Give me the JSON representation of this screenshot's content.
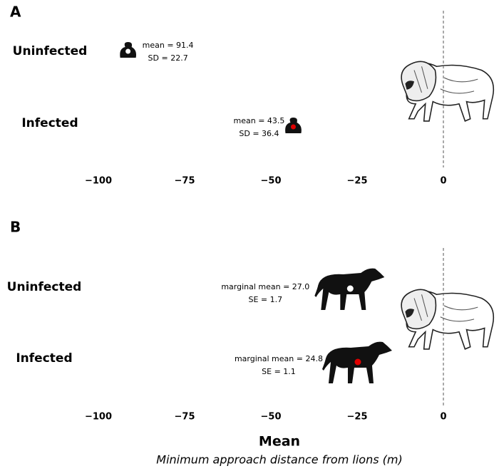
{
  "chart_data": [
    {
      "type": "scatter",
      "panel": "A",
      "categories": [
        "Uninfected",
        "Infected"
      ],
      "x": [
        -91.4,
        -43.5
      ],
      "colors": [
        "#ffffff",
        "#e00000"
      ],
      "annotations": [
        [
          "mean = 91.4",
          "SD = 22.7"
        ],
        [
          "mean = 43.5",
          "SD = 36.4"
        ]
      ],
      "xlim": [
        -110,
        15
      ],
      "xticks": [
        {
          "value": -100,
          "label": "−100"
        },
        {
          "value": -75,
          "label": "−75"
        },
        {
          "value": -50,
          "label": "−50"
        },
        {
          "value": -25,
          "label": "−25"
        },
        0
      ]
    },
    {
      "type": "scatter",
      "panel": "B",
      "categories": [
        "Uninfected",
        "Infected"
      ],
      "x": [
        -27.0,
        -24.8
      ],
      "colors": [
        "#ffffff",
        "#e00000"
      ],
      "annotations": [
        [
          "marginal mean = 27.0",
          "SE = 1.7"
        ],
        [
          "marginal mean = 24.8",
          "SE = 1.1"
        ]
      ],
      "xlim": [
        -110,
        15
      ],
      "xticks": [
        {
          "value": -100,
          "label": "−100"
        },
        {
          "value": -75,
          "label": "−75"
        },
        {
          "value": -50,
          "label": "−50"
        },
        {
          "value": -25,
          "label": "−25"
        },
        0
      ]
    }
  ],
  "footer": {
    "title": "Mean",
    "xlabel": "Minimum approach distance from lions (m)"
  }
}
